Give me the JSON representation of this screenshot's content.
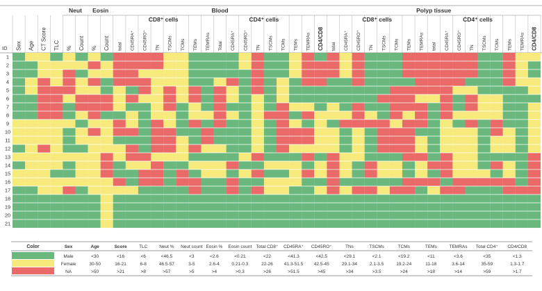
{
  "colors": {
    "green": "#6ab87d",
    "yellow": "#f7ea7c",
    "red": "#ea6a6a",
    "grid_line": "#ffffff",
    "header_line": "#555555"
  },
  "chart_data": {
    "type": "heatmap",
    "group_headers": [
      {
        "key": "neut",
        "label": "Neut"
      },
      {
        "key": "eosin",
        "label": "Eosin"
      },
      {
        "key": "blood",
        "label": "Blood"
      },
      {
        "key": "polyp",
        "label": "Polyp tissue"
      }
    ],
    "sub_headers": {
      "blood_cd8": "CD8⁺ cells",
      "blood_cd4": "CD4⁺ cells",
      "polyp_cd8": "CD8⁺ cells",
      "polyp_cd4": "CD4⁺ cells"
    },
    "id_header": "ID",
    "columns": [
      "Sex",
      "Age",
      "CT Score",
      "TLC",
      "%",
      "Count",
      "%",
      "Count",
      "total",
      "CD45RA⁺",
      "CD45RO⁺",
      "TN",
      "TSCMs",
      "TCMs",
      "TEMs",
      "TEMRAs",
      "Total",
      "CD45RA⁺",
      "CD45RO⁺",
      "TN",
      "TSCMs",
      "TCMs",
      "TEMs",
      "TEMRAs",
      "CD4/CD8",
      "total",
      "CD45RA⁺",
      "CD45RO⁺",
      "TN",
      "TSCMs",
      "TCMs",
      "TEMs",
      "TEMRAs",
      "total",
      "CD45RA⁺",
      "CD45RO⁺",
      "TN",
      "TSCMs",
      "TCMs",
      "TEMs",
      "TEMRAs",
      "CD4/CD8"
    ],
    "rows": [
      "1",
      "2",
      "3",
      "4",
      "5",
      "6",
      "7",
      "8",
      "9",
      "10",
      "11",
      "12",
      "13",
      "14",
      "15",
      "16",
      "17",
      "18",
      "19",
      "20",
      "21"
    ],
    "value_legend": {
      "0": "green",
      "1": "yellow",
      "2": "red"
    },
    "grid": [
      "011010102222110000120012021200022222200211",
      "001111212222110000120012221200022222200210",
      "001120112211110000020012221200022222200210",
      "012121202221110012020102200200002222000211",
      "012221101021212021020100000000222221100001",
      "002212221211212021010100000002221120211000",
      "002202221001201020010211010200222020211001",
      "002201200101101121012202111210212021111001",
      "111110112102102020010210102222122010202001",
      "111101212202200200010222110102220011102101",
      "111101110002210200010222110102221011101101",
      "012100111202212110010211110102221011101101",
      "111111121221110000120002021100022021100002",
      "011101120112001112001110121021101221102102",
      "111001120022020110120012121021101021110102",
      "111111112022022002001110020000022202222202",
      "001120111100002002021100121221220122000222",
      "000000010000000000000000000000000000000000",
      "000000010000000000000000000000000000000000",
      "000000010000000000000000000000000000000000",
      "000000010000000000000000000000000000000000"
    ],
    "legend_table": {
      "headers": [
        "Color",
        "Sex",
        "Age",
        "Score",
        "TLC",
        "Neut %",
        "Neut count",
        "Eosin %",
        "Eosin count",
        "Total CD8⁺",
        "CD45RA⁺",
        "CD45RO⁺",
        "TNs",
        "TSCMs",
        "TCMs",
        "TEMs",
        "TEMRAs",
        "Total CD4⁺",
        "CD4/CD8"
      ],
      "rows": [
        {
          "color": "green",
          "cells": [
            "Male",
            "<30",
            "<16",
            "<6",
            "<46.5",
            "<3",
            "<2.6",
            "<0.21",
            "<22",
            "<41.3",
            "<42.5",
            "<29.1",
            "<2.1",
            "<19.2",
            "<11",
            "<3.6",
            "<35",
            "<1.3"
          ]
        },
        {
          "color": "yellow",
          "cells": [
            "Female",
            "30-50",
            "16-21",
            "6-8",
            "46.5-57",
            "3-5",
            "2.6-4",
            "0.21-0.3",
            "22-26",
            "41.3-51.5",
            "42.5-45",
            "29.1-34",
            "2.1-3.5",
            "19.2-24",
            "11-18",
            "3.6-14",
            "35-59",
            "1.3-1.7"
          ]
        },
        {
          "color": "red",
          "cells": [
            "NA",
            ">50",
            ">21",
            ">8",
            ">57",
            ">5",
            ">4",
            ">0.3",
            ">26",
            ">51.5",
            ">45",
            ">34",
            ">3.5",
            ">24",
            ">18",
            ">14",
            ">59",
            ">1.7"
          ]
        }
      ]
    }
  }
}
